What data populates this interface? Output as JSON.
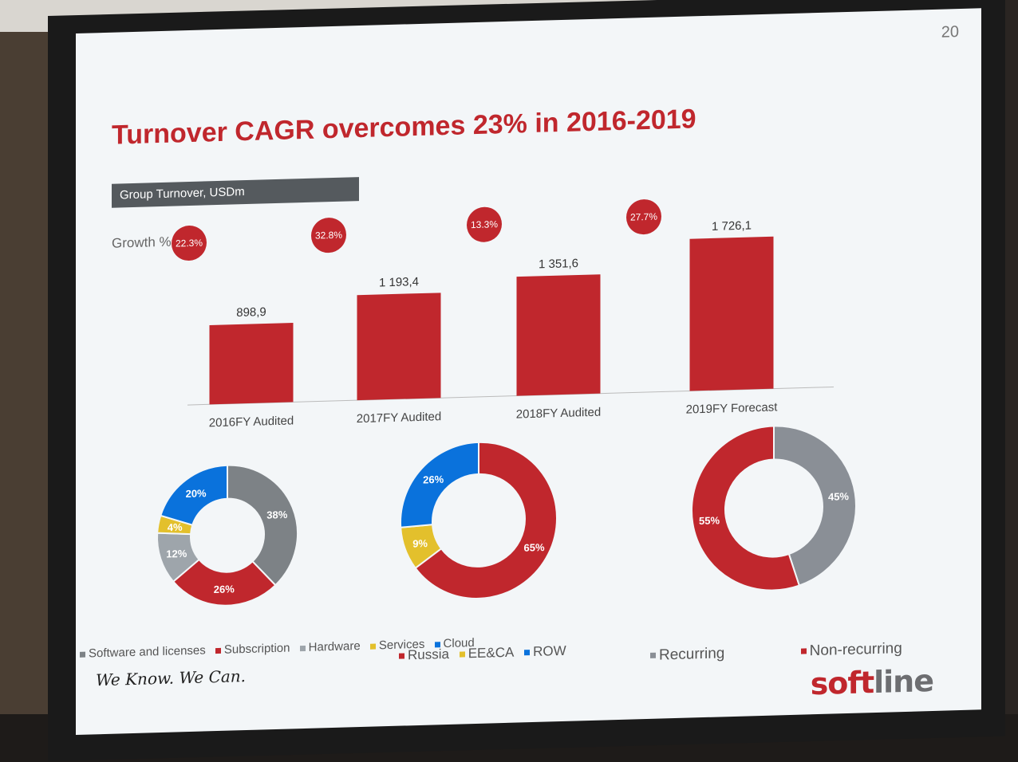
{
  "page_number": "20",
  "title": "Turnover CAGR overcomes 23% in 2016-2019",
  "subtitle_bar": "Group Turnover, USDm",
  "growth_label": "Growth %",
  "growth_bubbles": [
    "22.3%",
    "32.8%",
    "13.3%",
    "27.7%"
  ],
  "colors": {
    "accent": "#c0272d",
    "grey": "#7d8286",
    "lightgrey": "#9ea5ab",
    "yellow": "#e3c02c",
    "blue": "#0a72dc"
  },
  "slogan": "We Know. We Can.",
  "logo": {
    "part1": "soft",
    "part2": "line"
  },
  "chart_data": [
    {
      "type": "bar",
      "categories": [
        "2016FY Audited",
        "2017FY Audited",
        "2018FY Audited",
        "2019FY Forecast"
      ],
      "values": [
        898.9,
        1193.4,
        1351.6,
        1726.1
      ],
      "value_labels": [
        "898,9",
        "1 193,4",
        "1 351,6",
        "1 726,1"
      ],
      "title": "Group Turnover, USDm",
      "ylim": [
        0,
        1900
      ]
    },
    {
      "type": "pie",
      "donut": true,
      "categories": [
        "Software and licenses",
        "Subscription",
        "Hardware",
        "Services",
        "Cloud"
      ],
      "values": [
        38,
        26,
        12,
        4,
        20
      ],
      "labels": [
        "38%",
        "26%",
        "12%",
        "4%",
        "20%"
      ],
      "colors": [
        "#7d8286",
        "#c0272d",
        "#9ea5ab",
        "#e3c02c",
        "#0a72dc"
      ]
    },
    {
      "type": "pie",
      "donut": true,
      "categories": [
        "Russia",
        "EE&CA",
        "ROW"
      ],
      "values": [
        65,
        9,
        26
      ],
      "labels": [
        "65%",
        "9%",
        "26%"
      ],
      "colors": [
        "#c0272d",
        "#e3c02c",
        "#0a72dc"
      ]
    },
    {
      "type": "pie",
      "donut": true,
      "categories": [
        "Recurring",
        "Non-recurring"
      ],
      "values": [
        45,
        55
      ],
      "labels": [
        "45%",
        "55%"
      ],
      "colors": [
        "#8a8f96",
        "#c0272d"
      ]
    }
  ]
}
